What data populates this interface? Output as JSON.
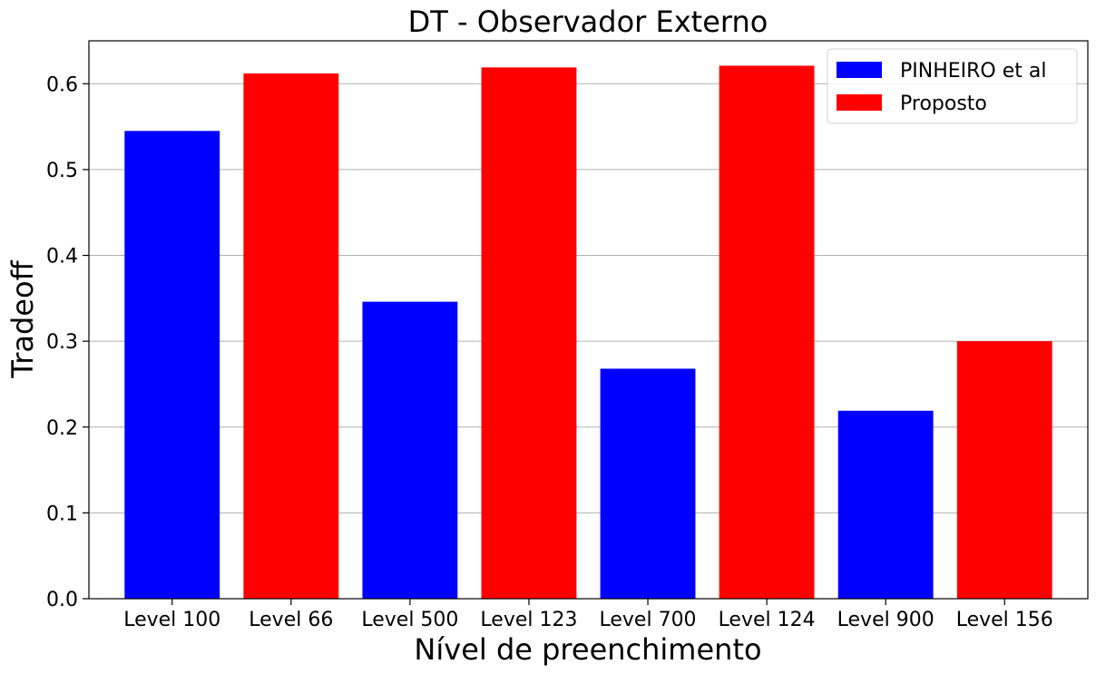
{
  "chart_data": {
    "type": "bar",
    "title": "DT - Observador Externo",
    "xlabel": "Nível de preenchimento",
    "ylabel": "Tradeoff",
    "ylim": [
      0,
      0.65
    ],
    "yticks": [
      0.0,
      0.1,
      0.2,
      0.3,
      0.4,
      0.5,
      0.6
    ],
    "grid": "y",
    "legend_position": "top-right",
    "categories": [
      "Level 100",
      "Level 66",
      "Level 500",
      "Level 123",
      "Level 700",
      "Level 124",
      "Level 900",
      "Level 156"
    ],
    "series": [
      {
        "name": "PINHEIRO et al",
        "color": "#0000ff",
        "values": [
          0.545,
          null,
          0.346,
          null,
          0.268,
          null,
          0.219,
          null
        ]
      },
      {
        "name": "Proposto",
        "color": "#ff0000",
        "values": [
          null,
          0.612,
          null,
          0.619,
          null,
          0.621,
          null,
          0.3
        ]
      }
    ]
  }
}
